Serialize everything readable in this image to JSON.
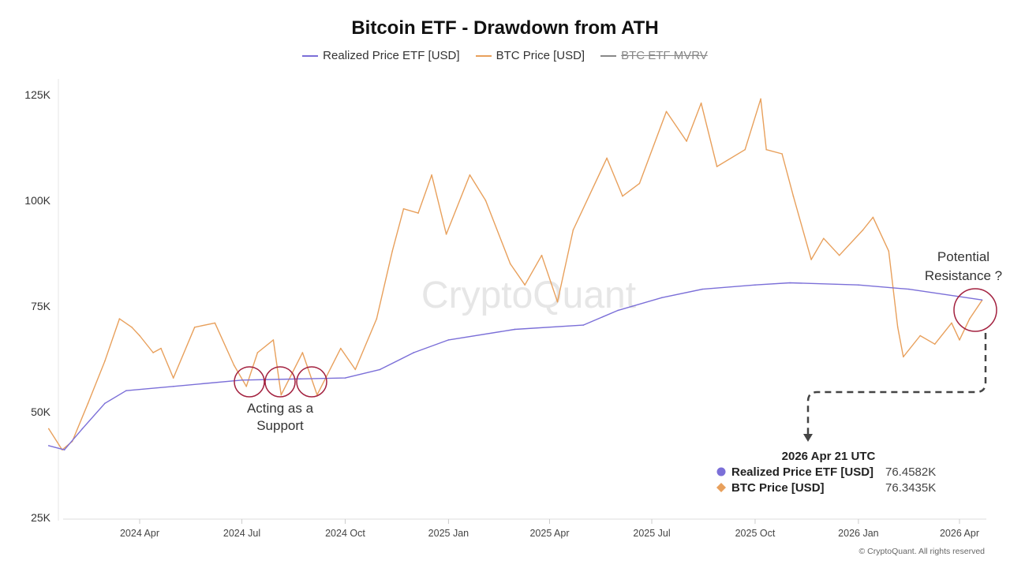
{
  "chart_data": {
    "type": "line",
    "title": "Bitcoin ETF - Drawdown from ATH",
    "legend": [
      {
        "name": "Realized Price ETF [USD]",
        "color": "#7b6fd8",
        "enabled": true
      },
      {
        "name": "BTC Price [USD]",
        "color": "#e8a05c",
        "enabled": true
      },
      {
        "name": "BTC ETF MVRV",
        "color": "#666666",
        "enabled": false
      }
    ],
    "legend_placement": "top-center",
    "y_ticks": [
      "25K",
      "50K",
      "75K",
      "100K",
      "125K"
    ],
    "ylim": [
      25,
      125
    ],
    "y_unit": "K USD",
    "x_ticks": [
      {
        "label": "2024 Apr",
        "date": "2024-04-01"
      },
      {
        "label": "2024 Jul",
        "date": "2024-07-01"
      },
      {
        "label": "2024 Oct",
        "date": "2024-10-01"
      },
      {
        "label": "2025 Jan",
        "date": "2025-01-01"
      },
      {
        "label": "2025 Apr",
        "date": "2025-04-01"
      },
      {
        "label": "2025 Jul",
        "date": "2025-07-01"
      },
      {
        "label": "2025 Oct",
        "date": "2025-10-01"
      },
      {
        "label": "2026 Jan",
        "date": "2026-01-01"
      },
      {
        "label": "2026 Apr",
        "date": "2026-04-01"
      }
    ],
    "grid": false,
    "series": [
      {
        "name": "Realized Price ETF [USD]",
        "color": "#7b6fd8",
        "points": [
          [
            "2024-01-11",
            42
          ],
          [
            "2024-01-25",
            41
          ],
          [
            "2024-02-10",
            46
          ],
          [
            "2024-03-01",
            52
          ],
          [
            "2024-03-20",
            55
          ],
          [
            "2024-05-01",
            56
          ],
          [
            "2024-07-01",
            57.5
          ],
          [
            "2024-10-01",
            58
          ],
          [
            "2024-11-01",
            60
          ],
          [
            "2024-12-01",
            64
          ],
          [
            "2025-01-01",
            67
          ],
          [
            "2025-03-01",
            69.5
          ],
          [
            "2025-05-01",
            70.5
          ],
          [
            "2025-06-01",
            74
          ],
          [
            "2025-07-10",
            77
          ],
          [
            "2025-08-15",
            79
          ],
          [
            "2025-10-01",
            80
          ],
          [
            "2025-11-01",
            80.5
          ],
          [
            "2026-01-01",
            80
          ],
          [
            "2026-02-15",
            79
          ],
          [
            "2026-04-21",
            76.4582
          ]
        ]
      },
      {
        "name": "BTC Price [USD]",
        "color": "#e8a05c",
        "points": [
          [
            "2024-01-11",
            46
          ],
          [
            "2024-01-23",
            41
          ],
          [
            "2024-02-01",
            43
          ],
          [
            "2024-02-15",
            52
          ],
          [
            "2024-03-01",
            62
          ],
          [
            "2024-03-14",
            72
          ],
          [
            "2024-03-25",
            70
          ],
          [
            "2024-04-01",
            68
          ],
          [
            "2024-04-13",
            64
          ],
          [
            "2024-04-20",
            65
          ],
          [
            "2024-05-01",
            58
          ],
          [
            "2024-05-20",
            70
          ],
          [
            "2024-06-07",
            71
          ],
          [
            "2024-06-24",
            61
          ],
          [
            "2024-07-05",
            56
          ],
          [
            "2024-07-15",
            64
          ],
          [
            "2024-07-29",
            67
          ],
          [
            "2024-08-05",
            54
          ],
          [
            "2024-08-24",
            64
          ],
          [
            "2024-09-06",
            54
          ],
          [
            "2024-09-27",
            65
          ],
          [
            "2024-10-10",
            60
          ],
          [
            "2024-10-29",
            72
          ],
          [
            "2024-11-12",
            88
          ],
          [
            "2024-11-22",
            98
          ],
          [
            "2024-12-05",
            97
          ],
          [
            "2024-12-17",
            106
          ],
          [
            "2024-12-30",
            92
          ],
          [
            "2025-01-20",
            106
          ],
          [
            "2025-02-03",
            100
          ],
          [
            "2025-02-25",
            85
          ],
          [
            "2025-03-10",
            80
          ],
          [
            "2025-03-25",
            87
          ],
          [
            "2025-04-08",
            76
          ],
          [
            "2025-04-22",
            93
          ],
          [
            "2025-05-22",
            110
          ],
          [
            "2025-06-05",
            101
          ],
          [
            "2025-06-20",
            104
          ],
          [
            "2025-07-14",
            121
          ],
          [
            "2025-08-01",
            114
          ],
          [
            "2025-08-14",
            123
          ],
          [
            "2025-08-28",
            108
          ],
          [
            "2025-09-22",
            112
          ],
          [
            "2025-10-06",
            124
          ],
          [
            "2025-10-11",
            112
          ],
          [
            "2025-10-25",
            111
          ],
          [
            "2025-11-04",
            101
          ],
          [
            "2025-11-20",
            86
          ],
          [
            "2025-12-01",
            91
          ],
          [
            "2025-12-15",
            87
          ],
          [
            "2026-01-05",
            93
          ],
          [
            "2026-01-14",
            96
          ],
          [
            "2026-01-28",
            88
          ],
          [
            "2026-02-05",
            70
          ],
          [
            "2026-02-10",
            63
          ],
          [
            "2026-02-25",
            68
          ],
          [
            "2026-03-10",
            66
          ],
          [
            "2026-03-25",
            71
          ],
          [
            "2026-04-01",
            67
          ],
          [
            "2026-04-10",
            72
          ],
          [
            "2026-04-21",
            76.3435
          ]
        ]
      }
    ],
    "annotations": {
      "support_lines": [
        "Acting as a",
        "Support"
      ],
      "resistance_lines": [
        "Potential",
        "Resistance ?"
      ]
    },
    "tooltip": {
      "date": "2026 Apr 21 UTC",
      "rows": [
        {
          "label": "Realized Price ETF [USD]",
          "value": "76.4582K",
          "color": "#7b6fd8"
        },
        {
          "label": "BTC Price [USD]",
          "value": "76.3435K",
          "color": "#e8a05c"
        }
      ]
    },
    "watermark": "CryptoQuant",
    "copyright": "© CryptoQuant. All rights reserved"
  }
}
